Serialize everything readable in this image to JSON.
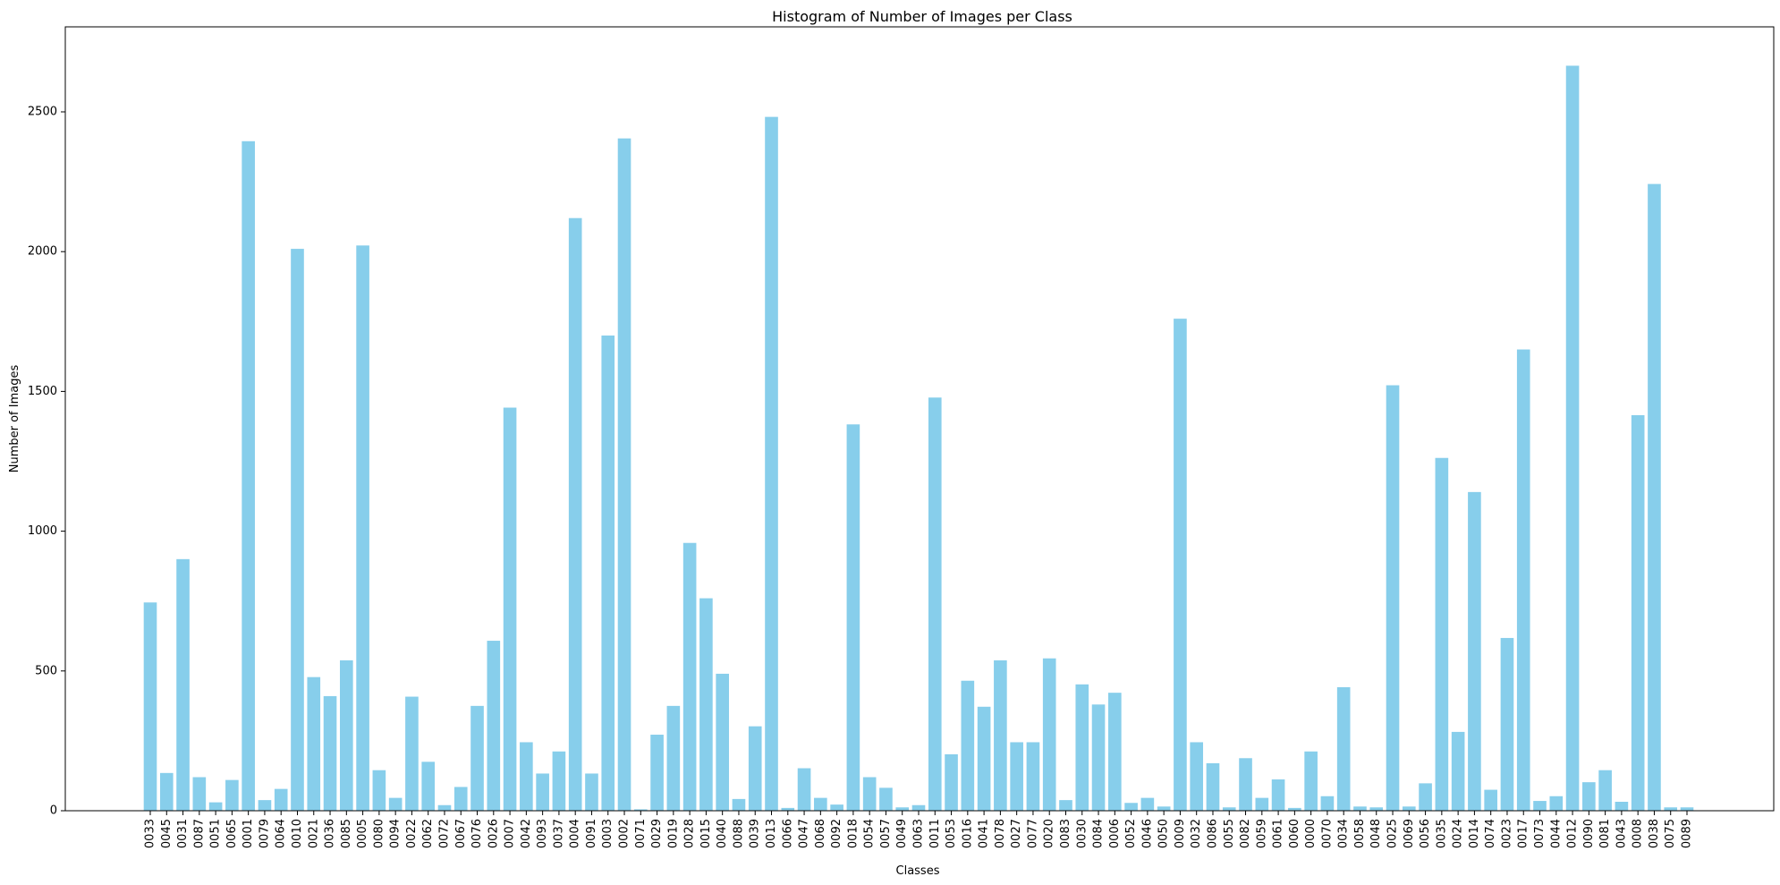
{
  "chart_data": {
    "type": "bar",
    "title": "Histogram of Number of Images per Class",
    "xlabel": "Classes",
    "ylabel": "Number of Images",
    "ylim": [
      0,
      2800
    ],
    "yticks": [
      0,
      500,
      1000,
      1500,
      2000,
      2500
    ],
    "bar_color": "#87ceeb",
    "grid": false,
    "categories": [
      "0033",
      "0045",
      "0031",
      "0087",
      "0051",
      "0065",
      "0001",
      "0079",
      "0064",
      "0010",
      "0021",
      "0036",
      "0085",
      "0005",
      "0080",
      "0094",
      "0022",
      "0062",
      "0072",
      "0067",
      "0076",
      "0026",
      "0007",
      "0042",
      "0093",
      "0037",
      "0004",
      "0091",
      "0003",
      "0002",
      "0071",
      "0029",
      "0019",
      "0028",
      "0015",
      "0040",
      "0088",
      "0039",
      "0013",
      "0066",
      "0047",
      "0068",
      "0092",
      "0018",
      "0054",
      "0057",
      "0049",
      "0063",
      "0011",
      "0053",
      "0016",
      "0041",
      "0078",
      "0027",
      "0077",
      "0020",
      "0083",
      "0030",
      "0084",
      "0006",
      "0052",
      "0046",
      "0050",
      "0009",
      "0032",
      "0086",
      "0055",
      "0082",
      "0059",
      "0061",
      "0060",
      "0000",
      "0070",
      "0034",
      "0058",
      "0048",
      "0025",
      "0069",
      "0056",
      "0035",
      "0024",
      "0014",
      "0074",
      "0023",
      "0017",
      "0073",
      "0044",
      "0012",
      "0090",
      "0081",
      "0043",
      "0008",
      "0038",
      "0075",
      "0089"
    ],
    "values": [
      745,
      135,
      900,
      120,
      30,
      110,
      2395,
      38,
      78,
      2010,
      478,
      410,
      538,
      2022,
      145,
      46,
      408,
      175,
      20,
      85,
      375,
      608,
      1442,
      245,
      133,
      212,
      2120,
      133,
      1700,
      2405,
      5,
      272,
      375,
      958,
      760,
      490,
      42,
      302,
      2482,
      10,
      152,
      46,
      22,
      1382,
      120,
      82,
      12,
      20,
      1478,
      202,
      465,
      372,
      538,
      245,
      245,
      545,
      38,
      452,
      380,
      422,
      28,
      46,
      15,
      1760,
      245,
      170,
      12,
      188,
      46,
      112,
      10,
      212,
      52,
      442,
      15,
      12,
      1522,
      15,
      98,
      1262,
      282,
      1140,
      75,
      618,
      1650,
      35,
      52,
      2665,
      102,
      145,
      32,
      1415,
      2242,
      12,
      12
    ]
  }
}
